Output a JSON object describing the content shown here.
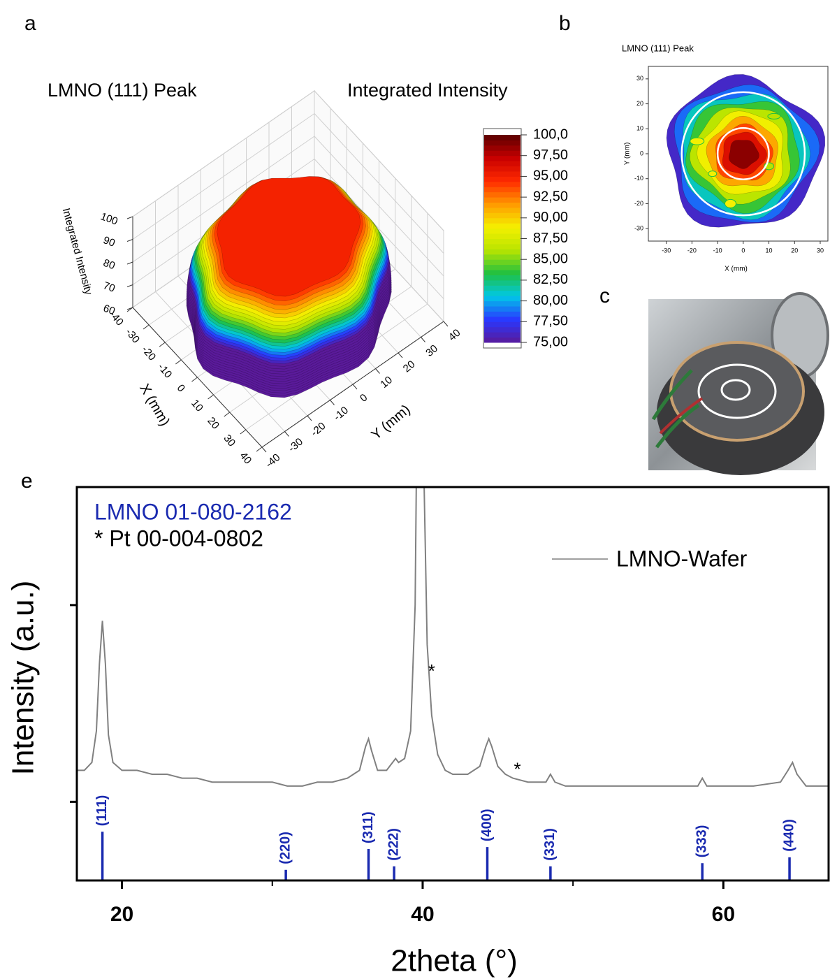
{
  "chart_data": [
    {
      "panel": "a",
      "type": "surface3d",
      "title": "LMNO (111) Peak",
      "colorbar_title": "Integrated Intensity",
      "zlabel": "Integrated Intensity",
      "xlabel": "X (mm)",
      "ylabel": "Y (mm)",
      "xlim": [
        -40,
        40
      ],
      "ylim": [
        -40,
        40
      ],
      "zlim": [
        60,
        100
      ],
      "xticks": [
        -40,
        -30,
        -20,
        -10,
        0,
        10,
        20,
        30,
        40
      ],
      "yticks": [
        -40,
        -30,
        -20,
        -10,
        0,
        10,
        20,
        30,
        40
      ],
      "zticks": [
        60,
        70,
        80,
        90,
        100
      ],
      "grid": true,
      "clim": [
        75,
        100
      ],
      "cticks": [
        {
          "value": 100,
          "label": "100,0"
        },
        {
          "value": 97.5,
          "label": "97,50"
        },
        {
          "value": 95,
          "label": "95,00"
        },
        {
          "value": 92.5,
          "label": "92,50"
        },
        {
          "value": 90,
          "label": "90,00"
        },
        {
          "value": 87.5,
          "label": "87,50"
        },
        {
          "value": 85,
          "label": "85,00"
        },
        {
          "value": 82.5,
          "label": "82,50"
        },
        {
          "value": 80,
          "label": "80,00"
        },
        {
          "value": 77.5,
          "label": "77,50"
        },
        {
          "value": 75,
          "label": "75,00"
        }
      ],
      "colormap": [
        "#5a1a9a",
        "#2838ff",
        "#00c8e8",
        "#20c040",
        "#b8e400",
        "#f4f000",
        "#ff9a00",
        "#ff2a00",
        "#c80000",
        "#5a0000"
      ]
    },
    {
      "panel": "b",
      "type": "contour",
      "title": "LMNO (111) Peak",
      "xlabel": "X (mm)",
      "ylabel": "Y (mm)",
      "xlim": [
        -37,
        33
      ],
      "ylim": [
        -35,
        35
      ],
      "xticks": [
        -30,
        -20,
        -10,
        0,
        10,
        20,
        30
      ],
      "yticks": [
        -30,
        -20,
        -10,
        0,
        10,
        20,
        30
      ]
    },
    {
      "panel": "e",
      "type": "line",
      "xlabel": "2theta (°)",
      "ylabel": "Intensity (a.u.)",
      "xlim": [
        17,
        67
      ],
      "xticks": [
        20,
        40,
        60
      ],
      "xminorticks": [
        30,
        50
      ],
      "ylim": [
        0,
        100
      ],
      "yminorticks": [
        20,
        70
      ],
      "legend": "upper right",
      "series": [
        {
          "name": "LMNO-Wafer",
          "color": "#808080",
          "x": [
            17,
            17.5,
            18,
            18.3,
            18.5,
            18.7,
            18.9,
            19.1,
            19.4,
            20,
            21,
            22,
            23,
            24,
            25,
            26,
            27,
            28,
            29,
            30,
            31,
            32,
            33,
            34,
            35,
            35.8,
            36.2,
            36.4,
            36.6,
            37,
            37.6,
            38,
            38.2,
            38.4,
            38.8,
            39.2,
            39.5,
            39.7,
            39.9,
            40.1,
            40.3,
            40.6,
            41,
            41.5,
            42,
            43,
            43.8,
            44.2,
            44.4,
            44.6,
            45,
            45.5,
            46,
            47,
            48.2,
            48.5,
            48.8,
            49.5,
            51,
            53,
            55,
            57,
            58.3,
            58.6,
            58.9,
            60,
            62,
            63.8,
            64.3,
            64.6,
            64.9,
            65.5,
            66,
            67
          ],
          "values": [
            28,
            28,
            30,
            38,
            55,
            66,
            55,
            37,
            30,
            28,
            28,
            27,
            27,
            26,
            26,
            25,
            25,
            25,
            25,
            25,
            24,
            24,
            25,
            25,
            26,
            28,
            34,
            36,
            33,
            28,
            28,
            30,
            31,
            30,
            31,
            38,
            70,
            150,
            150,
            100,
            60,
            42,
            32,
            28,
            27,
            27,
            29,
            34,
            36,
            34,
            29,
            27,
            26,
            25,
            25,
            27,
            25,
            24,
            24,
            24,
            24,
            24,
            24,
            26,
            24,
            24,
            24,
            25,
            28,
            30,
            27,
            24,
            24,
            24
          ]
        }
      ],
      "references": [
        {
          "name": "LMNO 01-080-2162",
          "color": "#1a2ab0",
          "x": [
            18.7,
            30.9,
            36.4,
            38.1,
            44.3,
            48.5,
            58.6,
            64.4
          ],
          "values": [
            12.4,
            2.7,
            8,
            3.6,
            8.5,
            3.6,
            4.4,
            5.9
          ],
          "labels": [
            "(111)",
            "(220)",
            "(311)",
            "(222)",
            "(400)",
            "(331)",
            "(333)",
            "(440)"
          ]
        },
        {
          "name": "* Pt 00-004-0802",
          "color": "#000000",
          "markers": [
            {
              "text": "*",
              "x": 40.6,
              "y": 54
            },
            {
              "text": "*",
              "x": 46.3,
              "y": 29
            }
          ]
        }
      ]
    }
  ],
  "photo": {
    "panel": "c"
  }
}
